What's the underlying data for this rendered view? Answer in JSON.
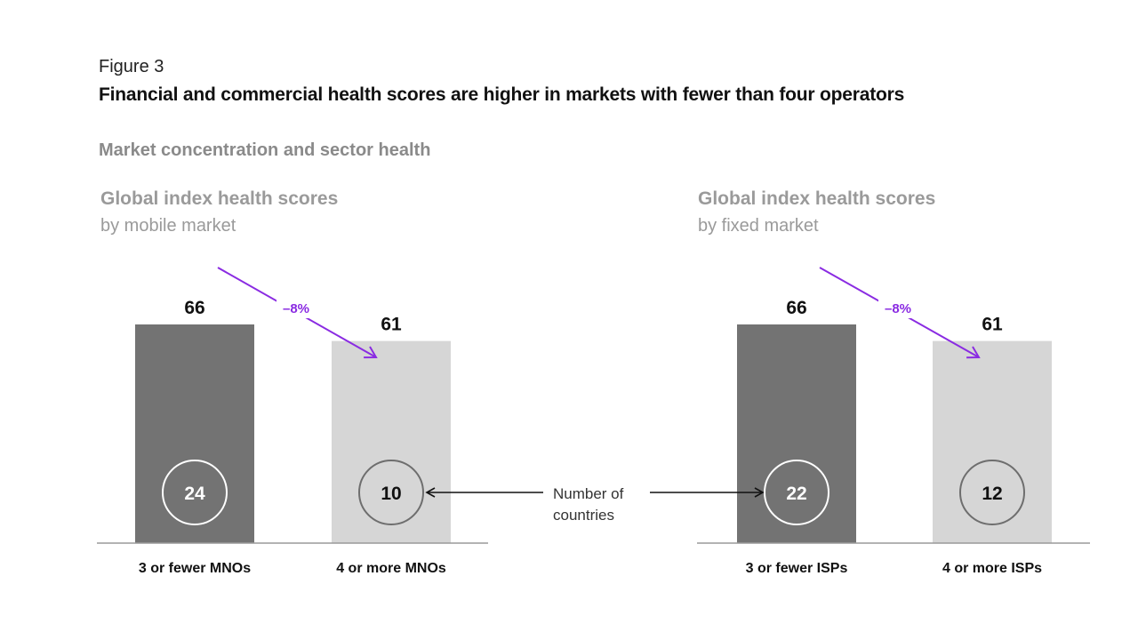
{
  "figure_label": "Figure 3",
  "figure_title": "Financial and commercial health scores are higher in markets with fewer than four operators",
  "subtitle": "Market concentration and sector health",
  "annotation": {
    "line1": "Number of",
    "line2": "countries"
  },
  "colors": {
    "dark_bar": "#737373",
    "light_bar": "#d6d6d6",
    "accent": "#8a2be2",
    "axis": "#9a9a9a"
  },
  "chart_data": [
    {
      "type": "bar",
      "title": "Global index health scores",
      "subtitle": "by mobile market",
      "categories": [
        "3 or fewer MNOs",
        "4 or more MNOs"
      ],
      "values": [
        66,
        61
      ],
      "counts": [
        24,
        10
      ],
      "change_label": "–8%"
    },
    {
      "type": "bar",
      "title": "Global index health scores",
      "subtitle": "by fixed market",
      "categories": [
        "3 or fewer ISPs",
        "4 or more ISPs"
      ],
      "values": [
        66,
        61
      ],
      "counts": [
        22,
        12
      ],
      "change_label": "–8%"
    }
  ]
}
